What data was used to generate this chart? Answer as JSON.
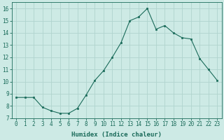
{
  "x": [
    0,
    1,
    2,
    3,
    4,
    5,
    6,
    7,
    8,
    9,
    10,
    11,
    12,
    13,
    14,
    15,
    16,
    17,
    18,
    19,
    20,
    21,
    22,
    23
  ],
  "y": [
    8.7,
    8.7,
    8.7,
    7.9,
    7.6,
    7.4,
    7.4,
    7.8,
    8.9,
    10.1,
    10.9,
    12.0,
    13.2,
    15.0,
    15.3,
    16.0,
    14.3,
    14.6,
    14.0,
    13.6,
    13.5,
    11.9,
    11.0,
    10.1
  ],
  "xlim": [
    -0.5,
    23.5
  ],
  "ylim": [
    7,
    16.5
  ],
  "yticks": [
    7,
    8,
    9,
    10,
    11,
    12,
    13,
    14,
    15,
    16
  ],
  "xticks": [
    0,
    1,
    2,
    3,
    4,
    5,
    6,
    7,
    8,
    9,
    10,
    11,
    12,
    13,
    14,
    15,
    16,
    17,
    18,
    19,
    20,
    21,
    22,
    23
  ],
  "xlabel": "Humidex (Indice chaleur)",
  "line_color": "#1a6b5a",
  "marker": "s",
  "marker_size": 2,
  "bg_color": "#cdeae5",
  "grid_color": "#b0d4ce",
  "tick_fontsize": 5.5,
  "label_fontsize": 6.5
}
